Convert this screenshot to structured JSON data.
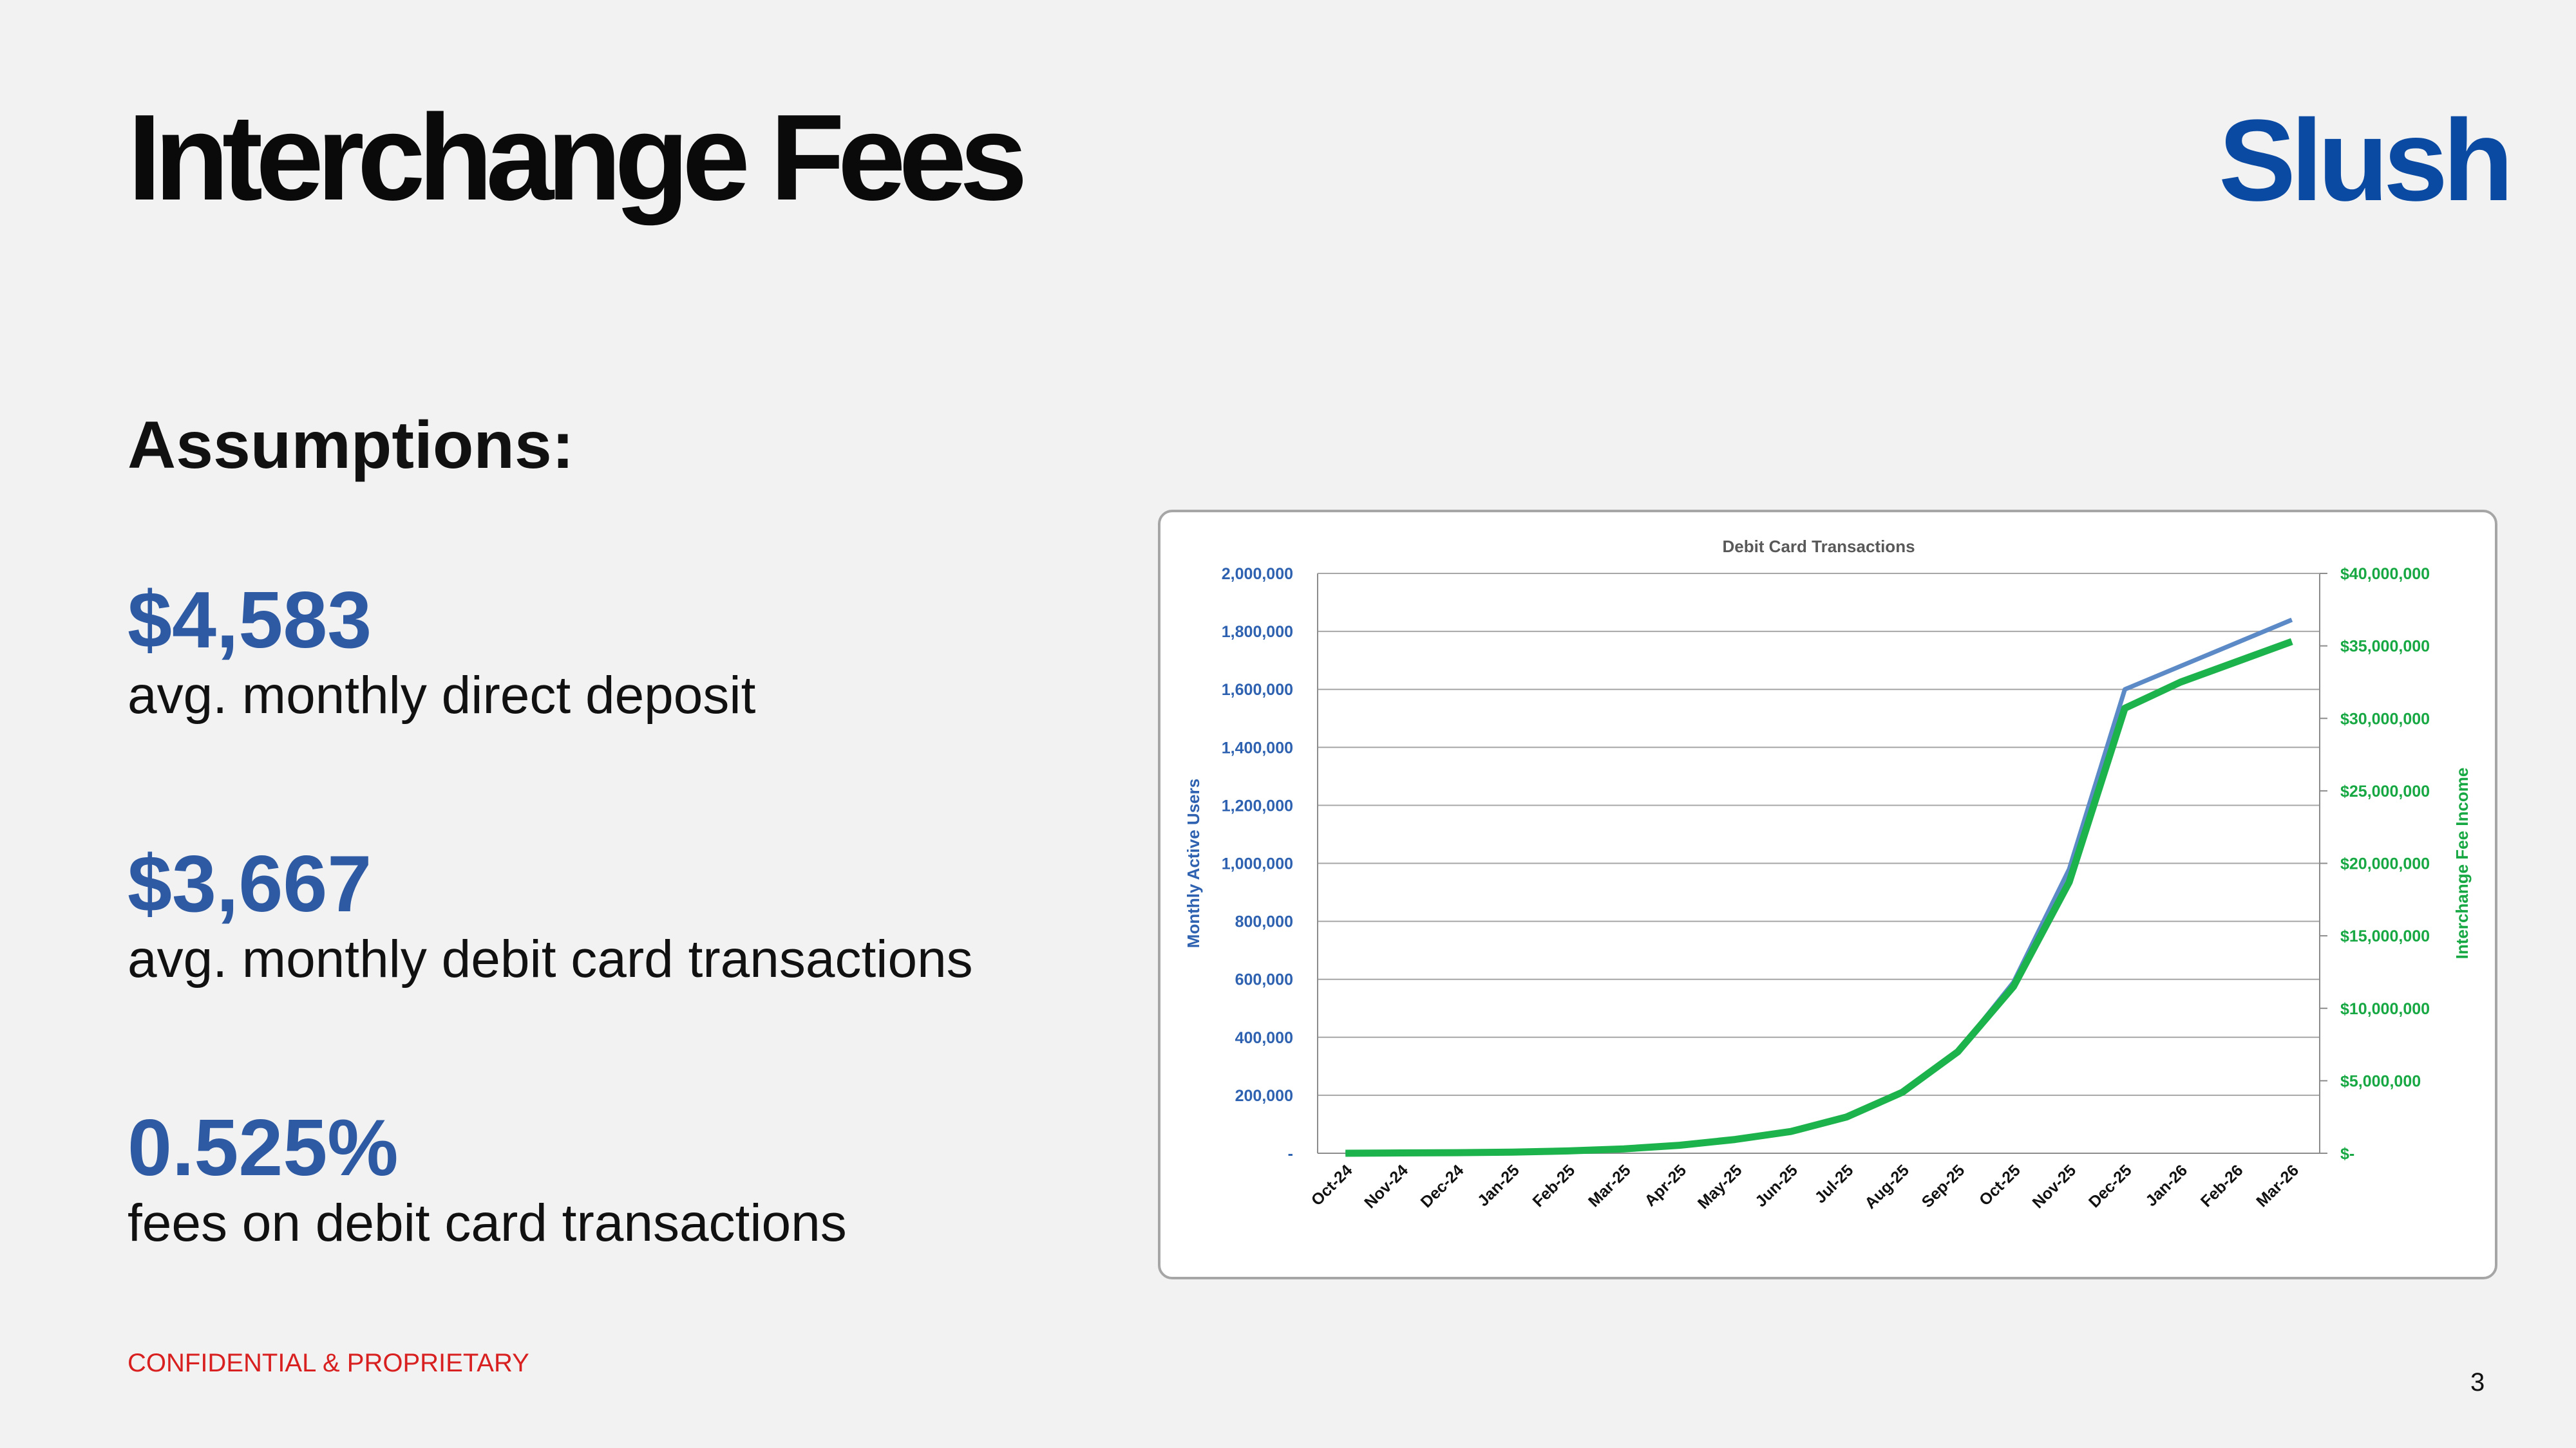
{
  "page": {
    "title": "Interchange Fees",
    "logo_text": "Slush",
    "assumptions_heading": "Assumptions:",
    "stats": [
      {
        "value": "$4,583",
        "label": "avg. monthly direct deposit"
      },
      {
        "value": "$3,667",
        "label": "avg. monthly debit card transactions"
      },
      {
        "value": "0.525%",
        "label": "fees on debit card transactions"
      }
    ],
    "footer": "CONFIDENTIAL & PROPRIETARY",
    "page_number": "3"
  },
  "colors": {
    "users_series": "#5b8ac7",
    "income_series": "#1db34c",
    "left_axis_text": "#2e62b0",
    "right_axis_text": "#17a843",
    "stat_value": "#2e5aa3",
    "brand": "#0a4aa3",
    "footer": "#d92020"
  },
  "chart_data": {
    "type": "line",
    "title": "Debit Card Transactions",
    "categories": [
      "Oct-24",
      "Nov-24",
      "Dec-24",
      "Jan-25",
      "Feb-25",
      "Mar-25",
      "Apr-25",
      "May-25",
      "Jun-25",
      "Jul-25",
      "Aug-25",
      "Sep-25",
      "Oct-25",
      "Nov-25",
      "Dec-25",
      "Jan-26",
      "Feb-26",
      "Mar-26"
    ],
    "ylabel": "Monthly Active Users",
    "ylabel_right": "Interchange Fee Income",
    "ylim": [
      0,
      2000000
    ],
    "ylim_right": [
      0,
      40000000
    ],
    "yticks": [
      "-",
      "200,000",
      "400,000",
      "600,000",
      "800,000",
      "1,000,000",
      "1,200,000",
      "1,400,000",
      "1,600,000",
      "1,800,000",
      "2,000,000"
    ],
    "yticks_right": [
      "$-",
      "$5,000,000",
      "$10,000,000",
      "$15,000,000",
      "$20,000,000",
      "$25,000,000",
      "$30,000,000",
      "$35,000,000",
      "$40,000,000"
    ],
    "grid": true,
    "series": [
      {
        "axis": "left",
        "values": [
          0,
          1000,
          2000,
          4000,
          8000,
          15000,
          28000,
          48000,
          75000,
          125000,
          210000,
          350000,
          590000,
          980000,
          1600000,
          1680000,
          1760000,
          1840000
        ]
      },
      {
        "axis": "right",
        "values": [
          0,
          20000,
          40000,
          80000,
          160000,
          300000,
          550000,
          950000,
          1500000,
          2500000,
          4200000,
          7000000,
          11500000,
          18700000,
          30700000,
          32500000,
          33900000,
          35300000
        ]
      }
    ]
  }
}
